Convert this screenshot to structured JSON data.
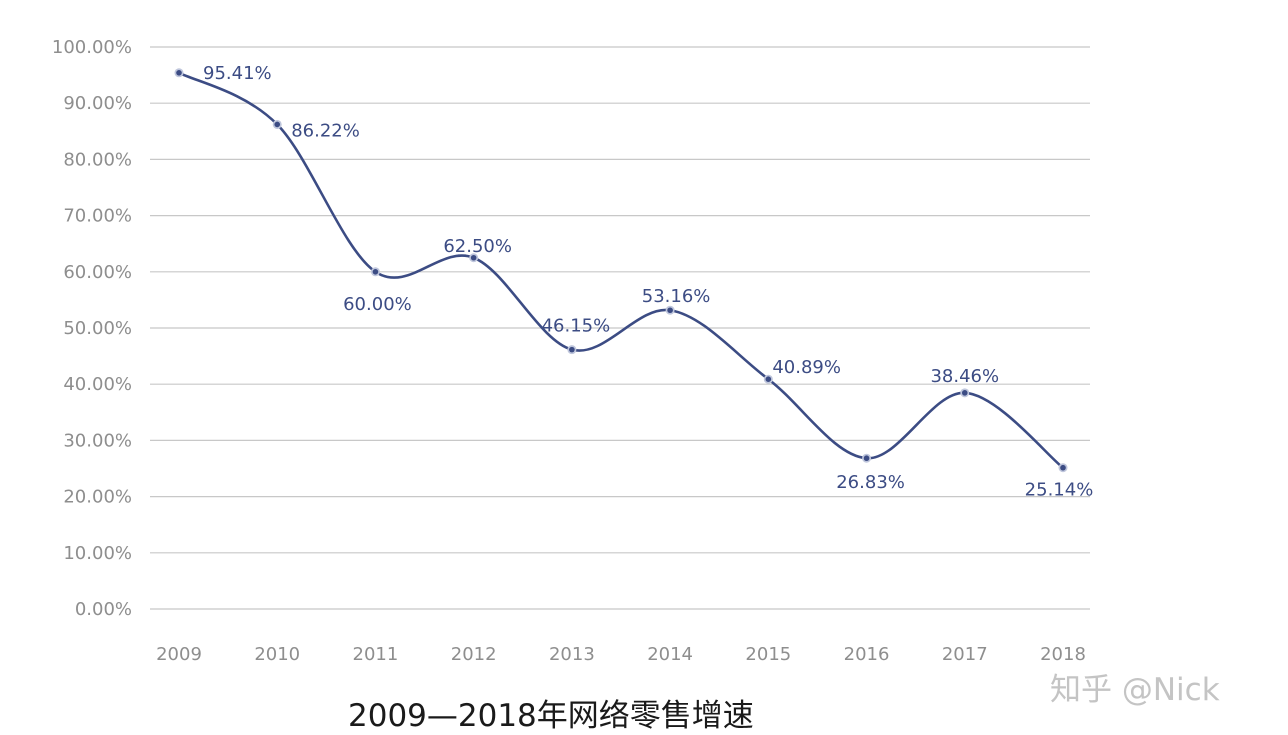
{
  "chart_data": {
    "type": "line",
    "caption": "2009—2018年网络零售增速",
    "categories": [
      "2009",
      "2010",
      "2011",
      "2012",
      "2013",
      "2014",
      "2015",
      "2016",
      "2017",
      "2018"
    ],
    "values": [
      95.41,
      86.22,
      60.0,
      62.5,
      46.15,
      53.16,
      40.89,
      26.83,
      38.46,
      25.14
    ],
    "value_labels": [
      "95.41%",
      "86.22%",
      "60.00%",
      "62.50%",
      "46.15%",
      "53.16%",
      "40.89%",
      "26.83%",
      "38.46%",
      "25.14%"
    ],
    "ylim": [
      0,
      100
    ],
    "ytick_labels": [
      "0.00%",
      "10.00%",
      "20.00%",
      "30.00%",
      "40.00%",
      "50.00%",
      "60.00%",
      "70.00%",
      "80.00%",
      "90.00%",
      "100.00%"
    ],
    "grid": true,
    "smooth": true,
    "line_color": "#3c4c84",
    "grid_color": "#c8c8c8"
  },
  "watermark": "知乎 @Nick"
}
